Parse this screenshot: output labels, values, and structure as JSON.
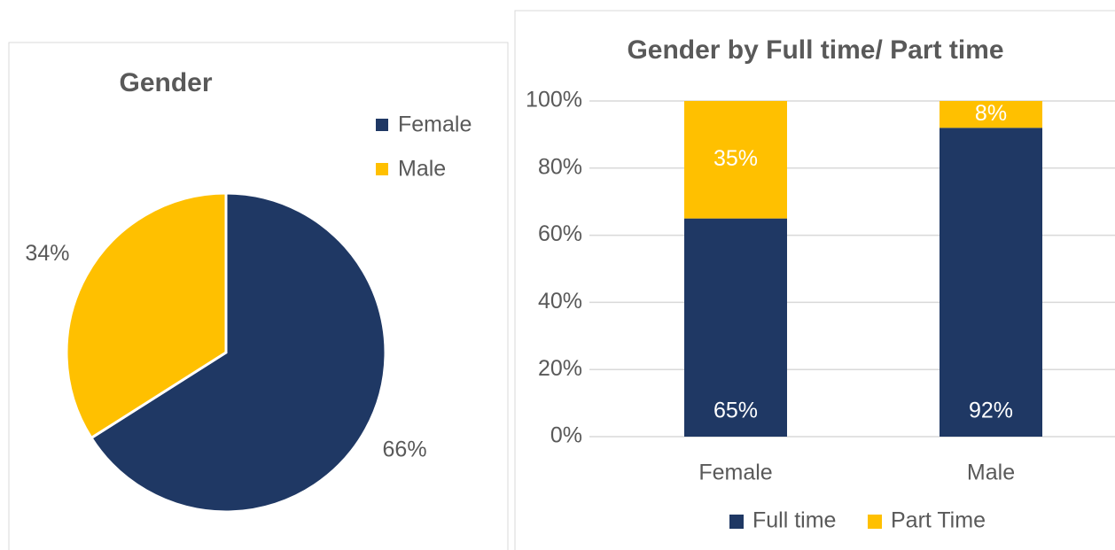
{
  "chart_data": [
    {
      "type": "pie",
      "title": "Gender",
      "categories": [
        "Female",
        "Male"
      ],
      "values": [
        66,
        34
      ],
      "value_labels": [
        "66%",
        "34%"
      ],
      "colors": [
        "#1f3864",
        "#ffc000"
      ],
      "legend": "right"
    },
    {
      "type": "bar",
      "stacked": true,
      "title": "Gender by Full time/ Part time",
      "categories": [
        "Female",
        "Male"
      ],
      "series": [
        {
          "name": "Full time",
          "color": "#1f3864",
          "values": [
            65,
            92
          ],
          "value_labels": [
            "65%",
            "92%"
          ]
        },
        {
          "name": "Part Time",
          "color": "#ffc000",
          "values": [
            35,
            8
          ],
          "value_labels": [
            "35%",
            "8%"
          ]
        }
      ],
      "ylim": [
        0,
        100
      ],
      "yticks": [
        {
          "value": 0,
          "label": "0%"
        },
        {
          "value": 20,
          "label": "20%"
        },
        {
          "value": 40,
          "label": "40%"
        },
        {
          "value": 60,
          "label": "60%"
        },
        {
          "value": 80,
          "label": "80%"
        },
        {
          "value": 100,
          "label": "100%"
        }
      ],
      "grid": true,
      "legend": "bottom"
    }
  ]
}
